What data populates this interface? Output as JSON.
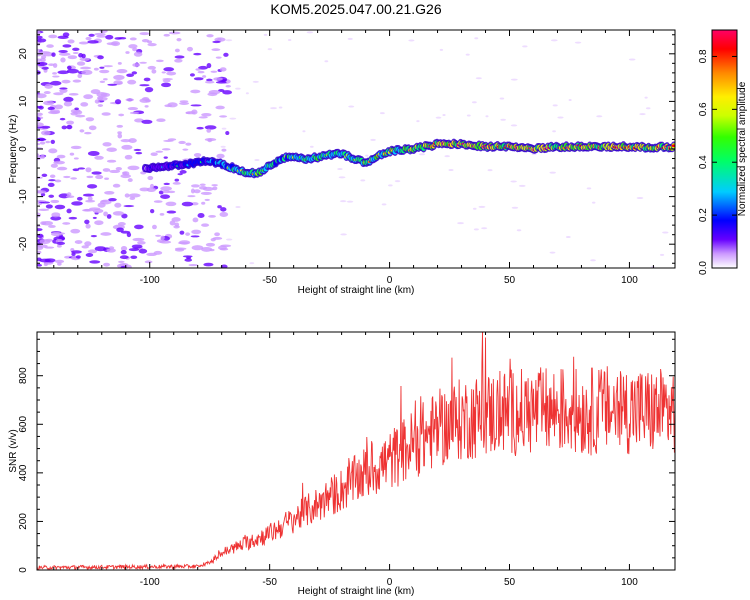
{
  "figure": {
    "title": "KOM5.2025.047.00.21.G26"
  },
  "chart_data": [
    {
      "type": "heatmap",
      "name": "spectrogram",
      "xlabel": "Height of straight line (km)",
      "ylabel": "Frequency (Hz)",
      "xlim": [
        -147,
        119
      ],
      "ylim": [
        -25,
        25
      ],
      "xticks": [
        -100,
        -50,
        0,
        50,
        100
      ],
      "yticks": [
        -20,
        -10,
        0,
        10,
        20
      ],
      "colorbar": {
        "label": "Normalized spectral amplitude",
        "range": [
          0.0,
          0.9
        ],
        "ticks": [
          "0.0",
          "0.2",
          "0.4",
          "0.6",
          "0.8"
        ],
        "colormap": [
          "#ffffff",
          "#cc99ff",
          "#6600ff",
          "#0000ff",
          "#00ccff",
          "#00ff66",
          "#33ff00",
          "#ccff00",
          "#ffee00",
          "#ff8800",
          "#ff0000",
          "#ff0066"
        ]
      },
      "trace": {
        "x": [
          -100,
          -90,
          -80,
          -75,
          -70,
          -65,
          -60,
          -55,
          -50,
          -45,
          -40,
          -35,
          -30,
          -25,
          -20,
          -15,
          -10,
          -5,
          0,
          5,
          10,
          15,
          20,
          30,
          40,
          50,
          60,
          70,
          80,
          90,
          100,
          110,
          119
        ],
        "freq": [
          -4,
          -3.5,
          -2.8,
          -2.5,
          -3.2,
          -4,
          -4.8,
          -5.2,
          -3.5,
          -2,
          -1.5,
          -2,
          -1.8,
          -1.2,
          -1,
          -2,
          -3,
          -1.5,
          -0.5,
          -0.2,
          0,
          0.5,
          1,
          1,
          0.5,
          0.5,
          0,
          0.5,
          0.5,
          0.5,
          0.5,
          0.3,
          0.5
        ],
        "amplitude": [
          0.2,
          0.3,
          0.35,
          0.4,
          0.4,
          0.5,
          0.55,
          0.6,
          0.5,
          0.5,
          0.55,
          0.55,
          0.6,
          0.55,
          0.5,
          0.55,
          0.6,
          0.6,
          0.65,
          0.65,
          0.7,
          0.75,
          0.85,
          0.85,
          0.85,
          0.8,
          0.85,
          0.8,
          0.8,
          0.85,
          0.85,
          0.8,
          0.8
        ]
      }
    },
    {
      "type": "line",
      "name": "snr",
      "xlabel": "Height of straight line (km)",
      "ylabel": "SNR (v/v)",
      "xlim": [
        -147,
        119
      ],
      "ylim": [
        0,
        980
      ],
      "xticks": [
        -100,
        -50,
        0,
        50,
        100
      ],
      "yticks": [
        0,
        200,
        400,
        600,
        800
      ],
      "color": "#ee3333",
      "envelope": {
        "x": [
          -147,
          -80,
          -75,
          -70,
          -60,
          -50,
          -40,
          -30,
          -20,
          -10,
          0,
          10,
          20,
          30,
          40,
          50,
          60,
          70,
          80,
          90,
          100,
          110,
          119
        ],
        "y": [
          10,
          15,
          30,
          70,
          110,
          150,
          210,
          270,
          330,
          400,
          450,
          520,
          580,
          620,
          640,
          650,
          650,
          660,
          650,
          660,
          660,
          650,
          660
        ]
      }
    }
  ]
}
